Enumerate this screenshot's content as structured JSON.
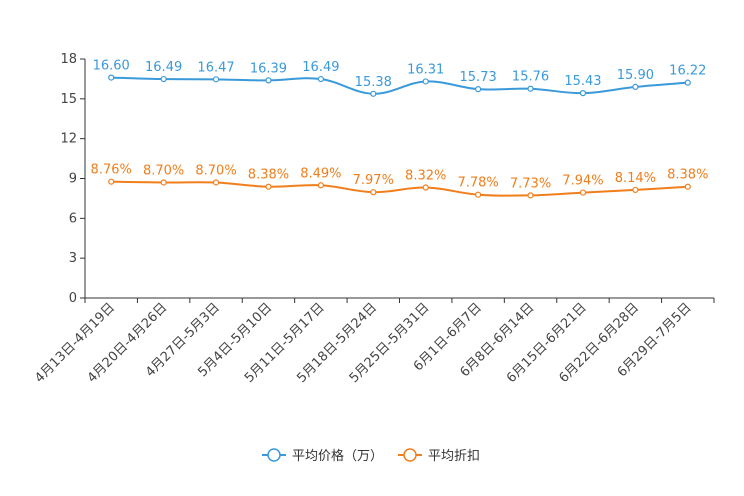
{
  "chart_data": {
    "type": "line",
    "title": "",
    "xlabel": "",
    "ylabel": "",
    "ylim": [
      0,
      18
    ],
    "yticks": [
      0,
      3,
      6,
      9,
      12,
      15,
      18
    ],
    "grid": false,
    "legend_position": "bottom-center",
    "categories": [
      "4月13日-4月19日",
      "4月20日-4月26日",
      "4月27日-5月3日",
      "5月4日-5月10日",
      "5月11日-5月17日",
      "5月18日-5月24日",
      "5月25日-5月31日",
      "6月1日-6月7日",
      "6月8日-6月14日",
      "6月15日-6月21日",
      "6月22日-6月28日",
      "6月29日-7月5日"
    ],
    "series": [
      {
        "name": "平均价格（万）",
        "color": "#3a9ad9",
        "values": [
          16.6,
          16.49,
          16.47,
          16.39,
          16.49,
          15.38,
          16.31,
          15.73,
          15.76,
          15.43,
          15.9,
          16.22
        ],
        "labels": [
          "16.60",
          "16.49",
          "16.47",
          "16.39",
          "16.49",
          "15.38",
          "16.31",
          "15.73",
          "15.76",
          "15.43",
          "15.90",
          "16.22"
        ]
      },
      {
        "name": "平均折扣",
        "color": "#f07e1b",
        "values": [
          8.76,
          8.7,
          8.7,
          8.38,
          8.49,
          7.97,
          8.32,
          7.78,
          7.73,
          7.94,
          8.14,
          8.38
        ],
        "labels": [
          "8.76%",
          "8.70%",
          "8.70%",
          "8.38%",
          "8.49%",
          "7.97%",
          "8.32%",
          "7.78%",
          "7.73%",
          "7.94%",
          "8.14%",
          "8.38%"
        ]
      }
    ]
  }
}
